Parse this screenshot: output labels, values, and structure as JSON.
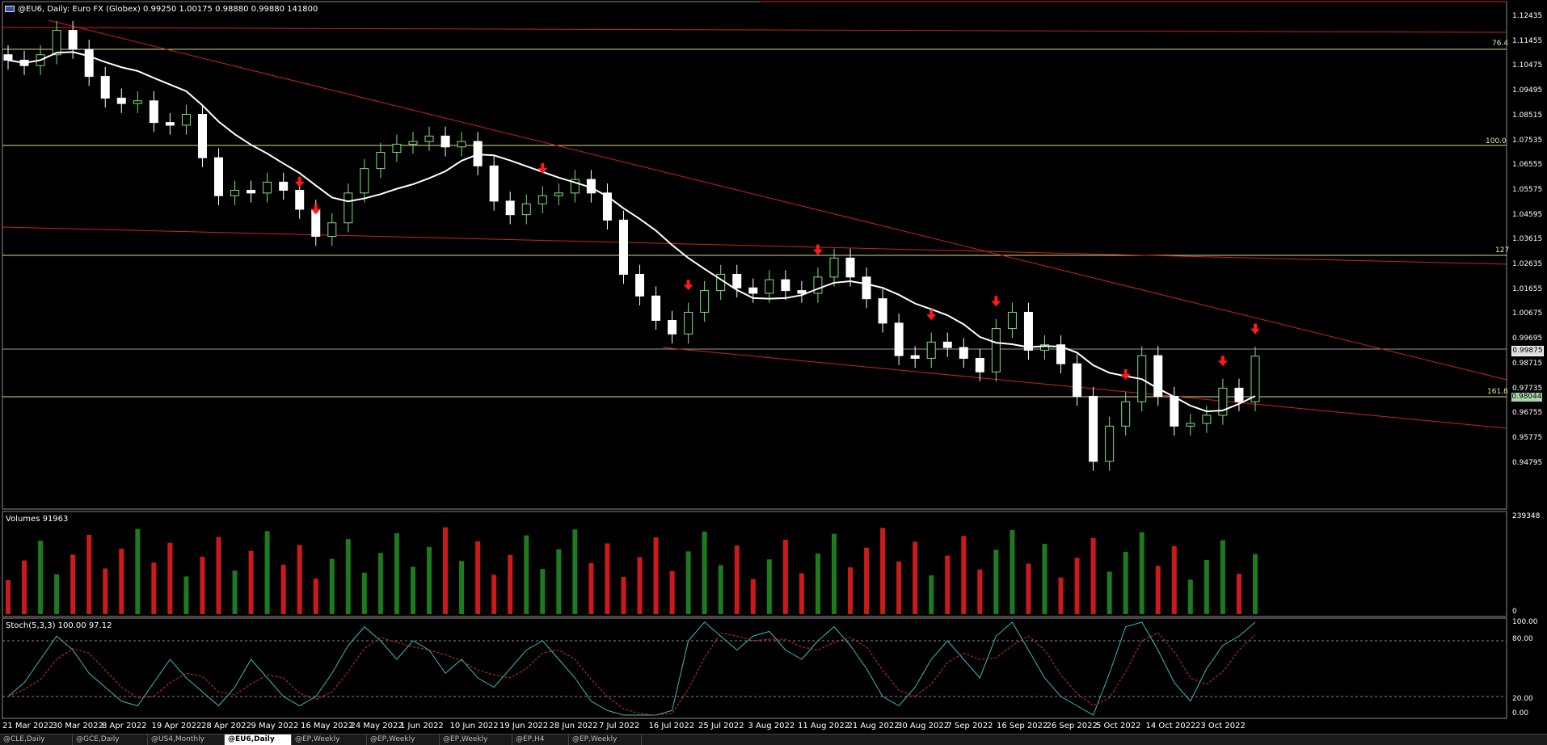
{
  "header": {
    "symbol": "@EU6, Daily:",
    "instrument": "Euro FX (Globex)",
    "ohlcv": "0.99250 1.00175 0.98880 0.99880 141800"
  },
  "volume_panel": {
    "title": "Volumes 91963",
    "max_label": "239348",
    "min_label": "0"
  },
  "stoch_panel": {
    "title": "Stoch(5,3,3) 100.00 97.12",
    "levels": [
      "100.00",
      "80.00",
      "20.00",
      "0.00"
    ]
  },
  "price_axis": [
    "1.12435",
    "1.11455",
    "1.10475",
    "1.09495",
    "1.08515",
    "1.07535",
    "1.06555",
    "1.05575",
    "1.04595",
    "1.03615",
    "1.02635",
    "1.01655",
    "1.00675",
    "0.99695",
    "0.98715",
    "0.97735",
    "0.96755",
    "0.95775",
    "0.94795"
  ],
  "current_price_tag": "0.99875",
  "level_tag": "0.98044",
  "fibo_labels": [
    "76.4",
    "100.0",
    "127",
    "161.8"
  ],
  "date_axis": [
    "21 Mar 2022",
    "30 Mar 2022",
    "8 Apr 2022",
    "19 Apr 2022",
    "28 Apr 2022",
    "9 May 2022",
    "16 May 2022",
    "24 May 2022",
    "1 Jun 2022",
    "10 Jun 2022",
    "19 Jun 2022",
    "28 Jun 2022",
    "7 Jul 2022",
    "16 Jul 2022",
    "25 Jul 2022",
    "3 Aug 2022",
    "11 Aug 2022",
    "21 Aug 2022",
    "30 Aug 2022",
    "7 Sep 2022",
    "16 Sep 2022",
    "26 Sep 2022",
    "5 Oct 2022",
    "14 Oct 2022",
    "23 Oct 2022"
  ],
  "tabs": [
    "@CLE,Daily",
    "@GCE,Daily",
    "@US4,Monthly",
    "@EU6,Daily",
    "@EP,Weekly",
    "@EP,Weekly",
    "@EP,Weekly",
    "@EP,H4",
    "@EP,Weekly"
  ],
  "colors": {
    "bull": "#7ee07e",
    "bear": "#ffffff",
    "vol_up": "#1e7a1e",
    "vol_down": "#cc1a1a",
    "ma": "#ffffff",
    "trend": "#cc2222",
    "fibo": "#d8d890",
    "arrow": "#ff1a1a",
    "stoch_k": "#3fb8b8",
    "stoch_d": "#cc3333"
  },
  "chart_data": {
    "type": "candlestick",
    "ylim": [
      0.943,
      1.129
    ],
    "x": [
      "2022-03-21",
      "2022-03-23",
      "2022-03-25",
      "2022-03-29",
      "2022-03-31",
      "2022-04-04",
      "2022-04-06",
      "2022-04-08",
      "2022-04-12",
      "2022-04-14",
      "2022-04-19",
      "2022-04-21",
      "2022-04-25",
      "2022-04-27",
      "2022-04-29",
      "2022-05-03",
      "2022-05-05",
      "2022-05-09",
      "2022-05-11",
      "2022-05-13",
      "2022-05-17",
      "2022-05-19",
      "2022-05-23",
      "2022-05-25",
      "2022-05-27",
      "2022-05-31",
      "2022-06-02",
      "2022-06-06",
      "2022-06-08",
      "2022-06-10",
      "2022-06-14",
      "2022-06-16",
      "2022-06-20",
      "2022-06-22",
      "2022-06-24",
      "2022-06-28",
      "2022-06-30",
      "2022-07-04",
      "2022-07-06",
      "2022-07-08",
      "2022-07-12",
      "2022-07-14",
      "2022-07-18",
      "2022-07-20",
      "2022-07-22",
      "2022-07-26",
      "2022-07-28",
      "2022-08-01",
      "2022-08-03",
      "2022-08-05",
      "2022-08-09",
      "2022-08-11",
      "2022-08-15",
      "2022-08-17",
      "2022-08-19",
      "2022-08-23",
      "2022-08-25",
      "2022-08-29",
      "2022-08-31",
      "2022-09-02",
      "2022-09-06",
      "2022-09-08",
      "2022-09-12",
      "2022-09-14",
      "2022-09-16",
      "2022-09-20",
      "2022-09-22",
      "2022-09-26",
      "2022-09-28",
      "2022-09-30",
      "2022-10-04",
      "2022-10-06",
      "2022-10-10",
      "2022-10-12",
      "2022-10-14",
      "2022-10-18",
      "2022-10-20",
      "2022-10-24"
    ],
    "close": [
      1.108,
      1.106,
      1.11,
      1.119,
      1.112,
      1.102,
      1.094,
      1.092,
      1.093,
      1.085,
      1.084,
      1.088,
      1.072,
      1.058,
      1.06,
      1.059,
      1.063,
      1.06,
      1.053,
      1.043,
      1.048,
      1.059,
      1.068,
      1.074,
      1.077,
      1.078,
      1.08,
      1.076,
      1.078,
      1.069,
      1.056,
      1.051,
      1.055,
      1.058,
      1.059,
      1.064,
      1.059,
      1.049,
      1.029,
      1.021,
      1.012,
      1.007,
      1.015,
      1.023,
      1.029,
      1.024,
      1.022,
      1.027,
      1.023,
      1.022,
      1.028,
      1.035,
      1.028,
      1.02,
      1.011,
      0.999,
      0.998,
      1.004,
      1.002,
      0.998,
      0.993,
      1.009,
      1.015,
      1.001,
      1.003,
      0.996,
      0.984,
      0.96,
      0.973,
      0.982,
      0.999,
      0.984,
      0.973,
      0.974,
      0.977,
      0.987,
      0.982,
      0.9988
    ],
    "volume_scale_max": 239348,
    "stoch_k": [
      20,
      35,
      60,
      85,
      70,
      45,
      30,
      15,
      10,
      35,
      60,
      40,
      25,
      10,
      30,
      60,
      40,
      20,
      10,
      20,
      45,
      75,
      95,
      80,
      60,
      80,
      70,
      45,
      60,
      40,
      30,
      50,
      70,
      80,
      60,
      40,
      15,
      5,
      0,
      0,
      0,
      5,
      80,
      100,
      85,
      70,
      85,
      90,
      70,
      60,
      80,
      95,
      75,
      50,
      20,
      10,
      30,
      60,
      80,
      60,
      40,
      85,
      100,
      70,
      40,
      20,
      10,
      0,
      45,
      95,
      100,
      70,
      35,
      15,
      50,
      75,
      85,
      100
    ]
  }
}
